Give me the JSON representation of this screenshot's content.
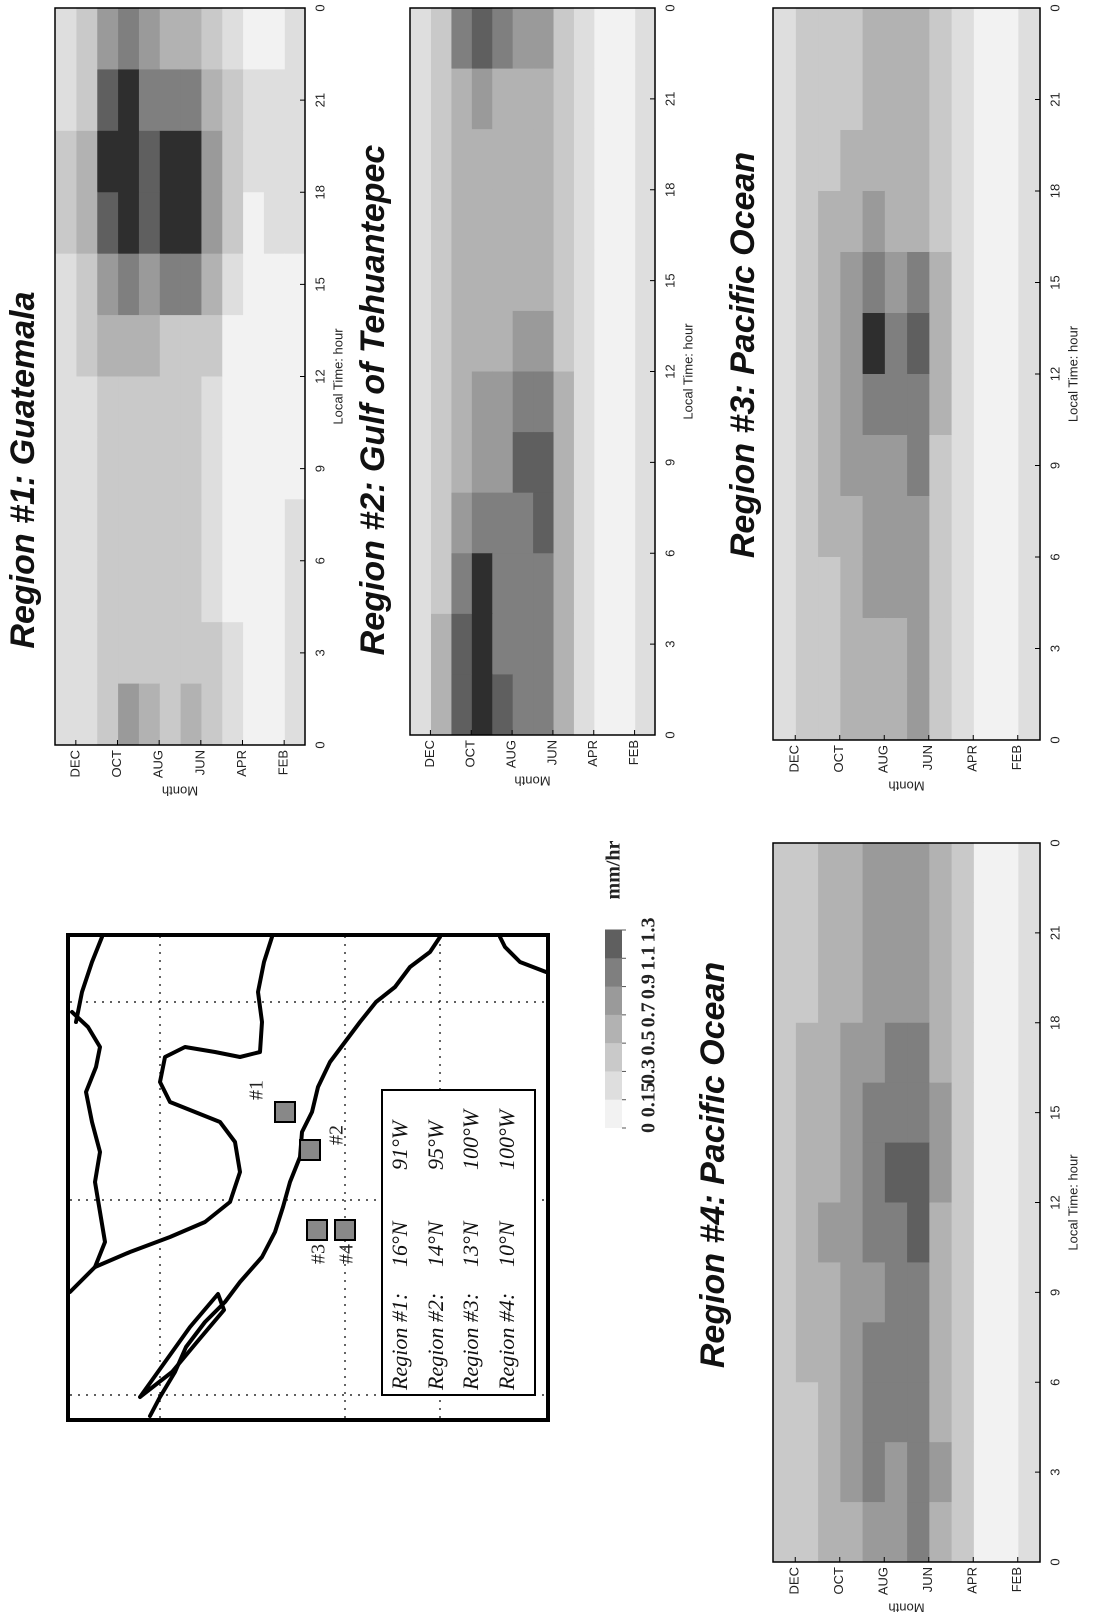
{
  "chart_data": [
    {
      "type": "heatmap",
      "title": "Region #1: Guatemala",
      "xlabel": "Local Time: hour",
      "ylabel": "Month",
      "x": [
        0,
        2,
        4,
        6,
        8,
        10,
        12,
        14,
        16,
        18,
        20,
        22
      ],
      "y": [
        1,
        2,
        3,
        4,
        5,
        6,
        7,
        8,
        9,
        10,
        11,
        12
      ],
      "xlim": [
        0,
        24
      ],
      "ylim": [
        1,
        13
      ],
      "xticks": [
        0,
        3,
        6,
        9,
        12,
        15,
        18,
        21,
        {
          "value": 24,
          "label": "0"
        }
      ],
      "yticks": [
        {
          "value": 12,
          "label": "DEC"
        },
        {
          "value": 10,
          "label": "OCT"
        },
        {
          "value": 8,
          "label": "AUG"
        },
        {
          "value": 6,
          "label": "JUN"
        },
        {
          "value": 4,
          "label": "APR"
        },
        {
          "value": 2,
          "label": "FEB"
        }
      ],
      "values": [
        [
          0.15,
          0.15,
          0.15,
          0.15,
          0.1,
          0.1,
          0.1,
          0.1,
          0.15,
          0.15,
          0.15,
          0.15
        ],
        [
          0.1,
          0.1,
          0.1,
          0.1,
          0.1,
          0.1,
          0.1,
          0.1,
          0.15,
          0.15,
          0.15,
          0.1
        ],
        [
          0.1,
          0.1,
          0.1,
          0.1,
          0.1,
          0.1,
          0.1,
          0.1,
          0.1,
          0.15,
          0.15,
          0.1
        ],
        [
          0.15,
          0.15,
          0.1,
          0.1,
          0.1,
          0.1,
          0.1,
          0.15,
          0.3,
          0.3,
          0.3,
          0.2
        ],
        [
          0.3,
          0.3,
          0.2,
          0.2,
          0.2,
          0.2,
          0.3,
          0.5,
          0.7,
          0.7,
          0.5,
          0.4
        ],
        [
          0.5,
          0.4,
          0.3,
          0.3,
          0.3,
          0.3,
          0.4,
          0.9,
          1.4,
          1.4,
          0.9,
          0.6
        ],
        [
          0.4,
          0.3,
          0.3,
          0.3,
          0.3,
          0.3,
          0.4,
          0.9,
          1.4,
          1.3,
          0.9,
          0.6
        ],
        [
          0.6,
          0.4,
          0.3,
          0.3,
          0.3,
          0.4,
          0.5,
          0.8,
          1.1,
          1.1,
          0.9,
          0.7
        ],
        [
          0.7,
          0.4,
          0.3,
          0.3,
          0.3,
          0.3,
          0.5,
          0.9,
          1.4,
          1.5,
          1.4,
          1.0
        ],
        [
          0.4,
          0.3,
          0.3,
          0.3,
          0.3,
          0.3,
          0.5,
          0.7,
          1.2,
          1.4,
          1.2,
          0.8
        ],
        [
          0.2,
          0.2,
          0.2,
          0.2,
          0.2,
          0.2,
          0.3,
          0.4,
          0.5,
          0.5,
          0.4,
          0.3
        ],
        [
          0.15,
          0.15,
          0.15,
          0.15,
          0.15,
          0.15,
          0.15,
          0.2,
          0.3,
          0.3,
          0.2,
          0.15
        ]
      ]
    },
    {
      "type": "heatmap",
      "title": "Region #2: Gulf of Tehuantepec",
      "xlabel": "Local Time: hour",
      "ylabel": "Month",
      "x": [
        0,
        2,
        4,
        6,
        8,
        10,
        12,
        14,
        16,
        18,
        20,
        22
      ],
      "y": [
        1,
        2,
        3,
        4,
        5,
        6,
        7,
        8,
        9,
        10,
        11,
        12
      ],
      "xlim": [
        0,
        24
      ],
      "ylim": [
        1,
        13
      ],
      "xticks": [
        0,
        3,
        6,
        9,
        12,
        15,
        18,
        21,
        {
          "value": 24,
          "label": "0"
        }
      ],
      "yticks": [
        {
          "value": 12,
          "label": "DEC"
        },
        {
          "value": 10,
          "label": "OCT"
        },
        {
          "value": 8,
          "label": "AUG"
        },
        {
          "value": 6,
          "label": "JUN"
        },
        {
          "value": 4,
          "label": "APR"
        },
        {
          "value": 2,
          "label": "FEB"
        }
      ],
      "values": [
        [
          0.15,
          0.15,
          0.15,
          0.15,
          0.15,
          0.15,
          0.15,
          0.15,
          0.15,
          0.15,
          0.15,
          0.15
        ],
        [
          0.1,
          0.1,
          0.1,
          0.1,
          0.1,
          0.1,
          0.1,
          0.1,
          0.1,
          0.1,
          0.05,
          0.1
        ],
        [
          0.1,
          0.1,
          0.1,
          0.1,
          0.1,
          0.1,
          0.1,
          0.1,
          0.1,
          0.1,
          0.05,
          0.1
        ],
        [
          0.15,
          0.15,
          0.15,
          0.15,
          0.15,
          0.15,
          0.15,
          0.15,
          0.15,
          0.15,
          0.15,
          0.15
        ],
        [
          0.5,
          0.5,
          0.5,
          0.5,
          0.5,
          0.5,
          0.4,
          0.3,
          0.3,
          0.3,
          0.3,
          0.4
        ],
        [
          0.9,
          1.0,
          1.0,
          1.1,
          1.2,
          1.0,
          0.8,
          0.6,
          0.5,
          0.5,
          0.6,
          0.8
        ],
        [
          0.9,
          0.9,
          0.9,
          1.0,
          1.1,
          0.9,
          0.7,
          0.5,
          0.5,
          0.5,
          0.5,
          0.7
        ],
        [
          1.1,
          1.0,
          0.9,
          0.9,
          0.8,
          0.7,
          0.6,
          0.5,
          0.5,
          0.5,
          0.6,
          0.9
        ],
        [
          1.4,
          1.4,
          1.3,
          0.9,
          0.8,
          0.7,
          0.6,
          0.5,
          0.5,
          0.5,
          0.7,
          1.2
        ],
        [
          1.2,
          1.2,
          1.0,
          0.7,
          0.6,
          0.5,
          0.5,
          0.5,
          0.5,
          0.5,
          0.6,
          1.0
        ],
        [
          0.5,
          0.5,
          0.4,
          0.3,
          0.3,
          0.3,
          0.3,
          0.3,
          0.3,
          0.3,
          0.3,
          0.4
        ],
        [
          0.2,
          0.2,
          0.2,
          0.2,
          0.2,
          0.2,
          0.2,
          0.2,
          0.2,
          0.2,
          0.2,
          0.2
        ]
      ]
    },
    {
      "type": "heatmap",
      "title": "Region #3: Pacific Ocean",
      "xlabel": "Local Time: hour",
      "ylabel": "Month",
      "x": [
        0,
        2,
        4,
        6,
        8,
        10,
        12,
        14,
        16,
        18,
        20,
        22
      ],
      "y": [
        1,
        2,
        3,
        4,
        5,
        6,
        7,
        8,
        9,
        10,
        11,
        12
      ],
      "xlim": [
        0,
        24
      ],
      "ylim": [
        1,
        13
      ],
      "xticks": [
        0,
        3,
        6,
        9,
        12,
        15,
        18,
        21,
        {
          "value": 24,
          "label": "0"
        }
      ],
      "yticks": [
        {
          "value": 12,
          "label": "DEC"
        },
        {
          "value": 10,
          "label": "OCT"
        },
        {
          "value": 8,
          "label": "AUG"
        },
        {
          "value": 6,
          "label": "JUN"
        },
        {
          "value": 4,
          "label": "APR"
        },
        {
          "value": 2,
          "label": "FEB"
        }
      ],
      "values": [
        [
          0.15,
          0.15,
          0.15,
          0.15,
          0.15,
          0.15,
          0.15,
          0.15,
          0.15,
          0.15,
          0.15,
          0.15
        ],
        [
          0.1,
          0.1,
          0.1,
          0.1,
          0.1,
          0.1,
          0.1,
          0.1,
          0.1,
          0.1,
          0.1,
          0.1
        ],
        [
          0.1,
          0.1,
          0.1,
          0.1,
          0.1,
          0.1,
          0.1,
          0.1,
          0.1,
          0.1,
          0.1,
          0.1
        ],
        [
          0.15,
          0.15,
          0.15,
          0.15,
          0.15,
          0.15,
          0.15,
          0.15,
          0.15,
          0.15,
          0.15,
          0.15
        ],
        [
          0.4,
          0.4,
          0.4,
          0.4,
          0.4,
          0.5,
          0.5,
          0.5,
          0.4,
          0.4,
          0.3,
          0.3
        ],
        [
          0.7,
          0.7,
          0.7,
          0.8,
          0.9,
          1.0,
          1.2,
          0.9,
          0.6,
          0.5,
          0.5,
          0.6
        ],
        [
          0.6,
          0.6,
          0.7,
          0.7,
          0.8,
          0.9,
          0.9,
          0.8,
          0.6,
          0.5,
          0.5,
          0.5
        ],
        [
          0.6,
          0.6,
          0.7,
          0.7,
          0.8,
          1.0,
          1.3,
          0.9,
          0.7,
          0.5,
          0.5,
          0.5
        ],
        [
          0.5,
          0.5,
          0.6,
          0.6,
          0.7,
          0.8,
          0.8,
          0.7,
          0.6,
          0.5,
          0.4,
          0.4
        ],
        [
          0.4,
          0.4,
          0.4,
          0.5,
          0.5,
          0.6,
          0.6,
          0.5,
          0.5,
          0.4,
          0.4,
          0.4
        ],
        [
          0.3,
          0.3,
          0.3,
          0.3,
          0.3,
          0.3,
          0.3,
          0.3,
          0.3,
          0.3,
          0.3,
          0.3
        ],
        [
          0.2,
          0.2,
          0.2,
          0.2,
          0.2,
          0.2,
          0.2,
          0.2,
          0.2,
          0.2,
          0.2,
          0.2
        ]
      ]
    },
    {
      "type": "heatmap",
      "title": "Region #4: Pacific Ocean",
      "xlabel": "Local Time: hour",
      "ylabel": "Month",
      "x": [
        0,
        2,
        4,
        6,
        8,
        10,
        12,
        14,
        16,
        18,
        20,
        22
      ],
      "y": [
        1,
        2,
        3,
        4,
        5,
        6,
        7,
        8,
        9,
        10,
        11,
        12
      ],
      "xlim": [
        0,
        24
      ],
      "ylim": [
        1,
        13
      ],
      "xticks": [
        0,
        3,
        6,
        9,
        12,
        15,
        18,
        21,
        {
          "value": 24,
          "label": "0"
        }
      ],
      "yticks": [
        {
          "value": 12,
          "label": "DEC"
        },
        {
          "value": 10,
          "label": "OCT"
        },
        {
          "value": 8,
          "label": "AUG"
        },
        {
          "value": 6,
          "label": "JUN"
        },
        {
          "value": 4,
          "label": "APR"
        },
        {
          "value": 2,
          "label": "FEB"
        }
      ],
      "values": [
        [
          0.2,
          0.2,
          0.2,
          0.2,
          0.2,
          0.2,
          0.2,
          0.2,
          0.2,
          0.2,
          0.2,
          0.2
        ],
        [
          0.1,
          0.1,
          0.1,
          0.1,
          0.1,
          0.1,
          0.1,
          0.1,
          0.1,
          0.1,
          0.1,
          0.1
        ],
        [
          0.1,
          0.1,
          0.1,
          0.1,
          0.1,
          0.1,
          0.1,
          0.1,
          0.1,
          0.1,
          0.1,
          0.1
        ],
        [
          0.3,
          0.3,
          0.3,
          0.3,
          0.3,
          0.3,
          0.3,
          0.3,
          0.3,
          0.3,
          0.3,
          0.3
        ],
        [
          0.6,
          0.7,
          0.6,
          0.6,
          0.6,
          0.6,
          0.7,
          0.7,
          0.6,
          0.6,
          0.5,
          0.5
        ],
        [
          0.9,
          0.9,
          1.0,
          0.9,
          0.9,
          1.1,
          1.2,
          1.0,
          0.9,
          0.8,
          0.8,
          0.8
        ],
        [
          0.8,
          0.8,
          0.9,
          0.9,
          0.9,
          1.0,
          1.1,
          1.0,
          0.9,
          0.8,
          0.8,
          0.8
        ],
        [
          0.8,
          1.0,
          0.9,
          0.9,
          0.8,
          0.9,
          1.0,
          0.9,
          0.8,
          0.7,
          0.7,
          0.7
        ],
        [
          0.6,
          0.7,
          0.7,
          0.7,
          0.7,
          0.7,
          0.8,
          0.8,
          0.7,
          0.6,
          0.6,
          0.6
        ],
        [
          0.5,
          0.5,
          0.6,
          0.6,
          0.6,
          0.7,
          0.6,
          0.6,
          0.6,
          0.5,
          0.5,
          0.5
        ],
        [
          0.4,
          0.4,
          0.4,
          0.5,
          0.5,
          0.5,
          0.5,
          0.5,
          0.5,
          0.4,
          0.4,
          0.4
        ],
        [
          0.3,
          0.3,
          0.3,
          0.3,
          0.3,
          0.3,
          0.3,
          0.3,
          0.3,
          0.3,
          0.3,
          0.3
        ]
      ]
    }
  ],
  "colorbar": {
    "unit": "mm/hr",
    "levels": [
      0,
      0.15,
      0.3,
      0.5,
      0.7,
      0.9,
      1.1,
      1.3
    ],
    "colors": [
      "#f2f2f2",
      "#dedede",
      "#c9c9c9",
      "#b2b2b2",
      "#9a9a9a",
      "#7f7f7f",
      "#5f5f5f",
      "#2e2e2e"
    ]
  },
  "map": {
    "markers": [
      "#1",
      "#2",
      "#3",
      "#4"
    ],
    "legend": [
      [
        "Region #1:",
        "16°N",
        "91°W"
      ],
      [
        "Region #2:",
        "14°N",
        "95°W"
      ],
      [
        "Region #3:",
        "13°N",
        "100°W"
      ],
      [
        "Region #4:",
        "10°N",
        "100°W"
      ]
    ]
  }
}
